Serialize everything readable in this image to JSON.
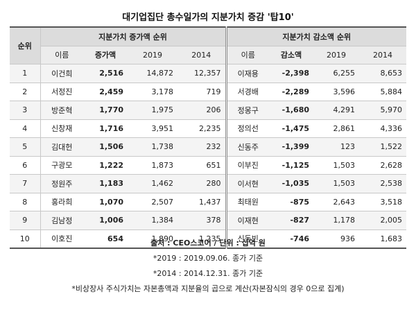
{
  "title": "대기업집단 총수일가의 지분가치 증감 '탑10'",
  "headers": {
    "rank": "순위",
    "increase_group": "지분가치 증가액 순위",
    "decrease_group": "지분가치 감소액 순위",
    "name": "이름",
    "increase": "증가액",
    "decrease": "감소액",
    "y2019": "2019",
    "y2014": "2014"
  },
  "rows": [
    {
      "rank": "1",
      "inc_name": "이건희",
      "inc_amt": "2,516",
      "inc_2019": "14,872",
      "inc_2014": "12,357",
      "dec_name": "이재용",
      "dec_amt": "-2,398",
      "dec_2019": "6,255",
      "dec_2014": "8,653"
    },
    {
      "rank": "2",
      "inc_name": "서정진",
      "inc_amt": "2,459",
      "inc_2019": "3,178",
      "inc_2014": "719",
      "dec_name": "서경배",
      "dec_amt": "-2,289",
      "dec_2019": "3,596",
      "dec_2014": "5,884"
    },
    {
      "rank": "3",
      "inc_name": "방준혁",
      "inc_amt": "1,770",
      "inc_2019": "1,975",
      "inc_2014": "206",
      "dec_name": "정몽구",
      "dec_amt": "-1,680",
      "dec_2019": "4,291",
      "dec_2014": "5,970"
    },
    {
      "rank": "4",
      "inc_name": "신창재",
      "inc_amt": "1,716",
      "inc_2019": "3,951",
      "inc_2014": "2,235",
      "dec_name": "정의선",
      "dec_amt": "-1,475",
      "dec_2019": "2,861",
      "dec_2014": "4,336"
    },
    {
      "rank": "5",
      "inc_name": "김대헌",
      "inc_amt": "1,506",
      "inc_2019": "1,738",
      "inc_2014": "232",
      "dec_name": "신동주",
      "dec_amt": "-1,399",
      "dec_2019": "123",
      "dec_2014": "1,522"
    },
    {
      "rank": "6",
      "inc_name": "구광모",
      "inc_amt": "1,222",
      "inc_2019": "1,873",
      "inc_2014": "651",
      "dec_name": "이부진",
      "dec_amt": "-1,125",
      "dec_2019": "1,503",
      "dec_2014": "2,628"
    },
    {
      "rank": "7",
      "inc_name": "정원주",
      "inc_amt": "1,183",
      "inc_2019": "1,462",
      "inc_2014": "280",
      "dec_name": "이서현",
      "dec_amt": "-1,035",
      "dec_2019": "1,503",
      "dec_2014": "2,538"
    },
    {
      "rank": "8",
      "inc_name": "홍라희",
      "inc_amt": "1,070",
      "inc_2019": "2,507",
      "inc_2014": "1,437",
      "dec_name": "최태원",
      "dec_amt": "-875",
      "dec_2019": "2,643",
      "dec_2014": "3,518"
    },
    {
      "rank": "9",
      "inc_name": "김남정",
      "inc_amt": "1,006",
      "inc_2019": "1,384",
      "inc_2014": "378",
      "dec_name": "이재현",
      "dec_amt": "-827",
      "dec_2019": "1,178",
      "dec_2014": "2,005"
    },
    {
      "rank": "10",
      "inc_name": "이호진",
      "inc_amt": "654",
      "inc_2019": "1,890",
      "inc_2014": "1,235",
      "dec_name": "신동빈",
      "dec_amt": "-746",
      "dec_2019": "936",
      "dec_2014": "1,683"
    }
  ],
  "notes": {
    "source": "출처 : CEO스코어 / 단위 : 십억 원",
    "note_2019": "*2019 : 2019.09.06. 종가 기준",
    "note_2014": "*2014 : 2014.12.31. 종가 기준",
    "note_unlisted": "*비상장사 주식가치는 자본총액과 지분율의 곱으로 계산(자본잠식의 경우 0으로 집계)"
  }
}
